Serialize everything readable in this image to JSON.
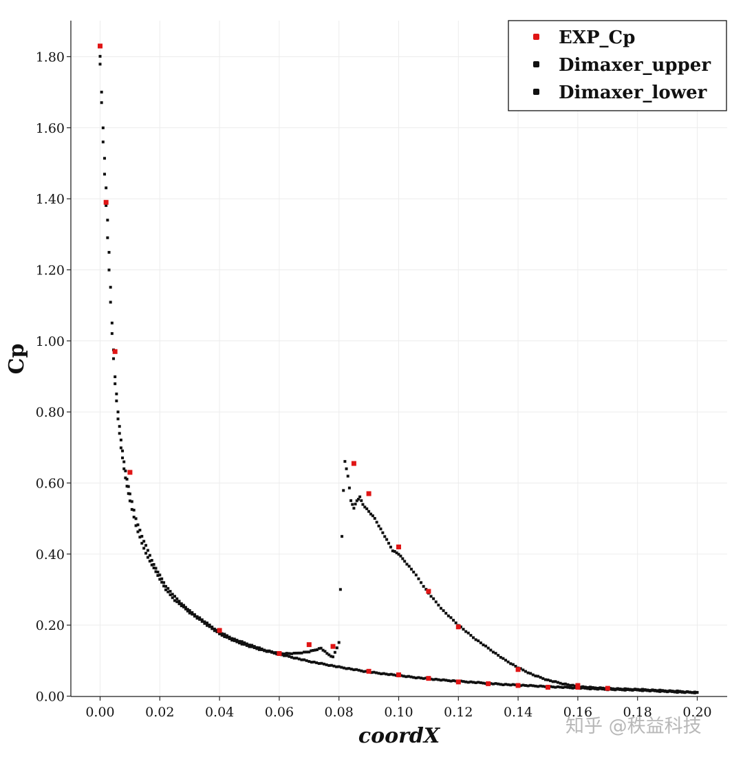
{
  "chart_data": {
    "type": "scatter",
    "title": "",
    "xlabel": "coordX",
    "ylabel": "Cp",
    "xlim": [
      -0.01,
      0.2
    ],
    "ylim": [
      0.0,
      1.9
    ],
    "grid": true,
    "legend_position": "top-right",
    "x_ticks": [
      "0.00",
      "0.02",
      "0.04",
      "0.06",
      "0.08",
      "0.10",
      "0.12",
      "0.14",
      "0.16",
      "0.18",
      "0.20"
    ],
    "y_ticks": [
      "0.00",
      "0.20",
      "0.40",
      "0.60",
      "0.80",
      "1.00",
      "1.20",
      "1.40",
      "1.60",
      "1.80"
    ],
    "series": [
      {
        "name": "EXP_Cp",
        "color": "#e01515",
        "x": [
          0.0,
          0.002,
          0.005,
          0.01,
          0.04,
          0.06,
          0.07,
          0.078,
          0.085,
          0.09,
          0.1,
          0.11,
          0.12,
          0.14,
          0.16,
          0.09,
          0.1,
          0.11,
          0.12,
          0.13,
          0.14,
          0.15,
          0.16,
          0.17
        ],
        "y": [
          1.83,
          1.39,
          0.97,
          0.63,
          0.185,
          0.12,
          0.145,
          0.14,
          0.655,
          0.57,
          0.42,
          0.295,
          0.195,
          0.075,
          0.03,
          0.07,
          0.06,
          0.05,
          0.04,
          0.035,
          0.03,
          0.025,
          0.025,
          0.022
        ]
      },
      {
        "name": "Dimaxer_upper",
        "color": "#111111",
        "x": [
          0.0,
          0.001,
          0.002,
          0.003,
          0.004,
          0.005,
          0.006,
          0.007,
          0.008,
          0.009,
          0.01,
          0.012,
          0.014,
          0.016,
          0.018,
          0.02,
          0.022,
          0.025,
          0.028,
          0.03,
          0.035,
          0.04,
          0.045,
          0.05,
          0.055,
          0.06,
          0.065,
          0.07,
          0.072,
          0.074,
          0.076,
          0.078,
          0.08,
          0.0805,
          0.081,
          0.0815,
          0.082,
          0.083,
          0.084,
          0.085,
          0.086,
          0.087,
          0.088,
          0.09,
          0.092,
          0.094,
          0.096,
          0.098,
          0.1,
          0.102,
          0.105,
          0.11,
          0.115,
          0.12,
          0.125,
          0.13,
          0.135,
          0.14,
          0.145,
          0.15,
          0.155,
          0.16,
          0.165,
          0.17,
          0.175,
          0.18,
          0.185,
          0.19,
          0.195,
          0.2
        ],
        "y": [
          1.8,
          1.6,
          1.43,
          1.25,
          1.05,
          0.9,
          0.8,
          0.72,
          0.66,
          0.61,
          0.57,
          0.5,
          0.45,
          0.41,
          0.37,
          0.34,
          0.31,
          0.28,
          0.255,
          0.24,
          0.21,
          0.18,
          0.16,
          0.145,
          0.13,
          0.12,
          0.12,
          0.125,
          0.13,
          0.135,
          0.12,
          0.11,
          0.15,
          0.3,
          0.45,
          0.58,
          0.66,
          0.62,
          0.55,
          0.53,
          0.55,
          0.56,
          0.54,
          0.52,
          0.5,
          0.47,
          0.44,
          0.41,
          0.4,
          0.38,
          0.35,
          0.29,
          0.24,
          0.2,
          0.165,
          0.135,
          0.105,
          0.08,
          0.06,
          0.045,
          0.035,
          0.027,
          0.024,
          0.022,
          0.02,
          0.019,
          0.017,
          0.015,
          0.013,
          0.01
        ]
      },
      {
        "name": "Dimaxer_lower",
        "color": "#111111",
        "x": [
          0.0,
          0.001,
          0.002,
          0.003,
          0.004,
          0.005,
          0.006,
          0.007,
          0.008,
          0.009,
          0.01,
          0.012,
          0.014,
          0.016,
          0.018,
          0.02,
          0.022,
          0.025,
          0.028,
          0.03,
          0.035,
          0.04,
          0.045,
          0.05,
          0.055,
          0.06,
          0.065,
          0.07,
          0.075,
          0.08,
          0.085,
          0.09,
          0.095,
          0.1,
          0.105,
          0.11,
          0.115,
          0.12,
          0.125,
          0.13,
          0.135,
          0.14,
          0.145,
          0.15,
          0.155,
          0.16,
          0.165,
          0.17,
          0.175,
          0.18,
          0.185,
          0.19,
          0.195,
          0.2
        ],
        "y": [
          1.78,
          1.56,
          1.38,
          1.2,
          1.02,
          0.88,
          0.78,
          0.7,
          0.64,
          0.59,
          0.55,
          0.48,
          0.43,
          0.39,
          0.36,
          0.33,
          0.3,
          0.27,
          0.25,
          0.235,
          0.205,
          0.175,
          0.155,
          0.14,
          0.128,
          0.118,
          0.108,
          0.098,
          0.09,
          0.082,
          0.075,
          0.068,
          0.063,
          0.058,
          0.053,
          0.049,
          0.045,
          0.042,
          0.039,
          0.036,
          0.033,
          0.031,
          0.029,
          0.027,
          0.025,
          0.023,
          0.021,
          0.019,
          0.018,
          0.017,
          0.015,
          0.013,
          0.011,
          0.01
        ]
      }
    ]
  },
  "watermark": "知乎 @秩益科技"
}
